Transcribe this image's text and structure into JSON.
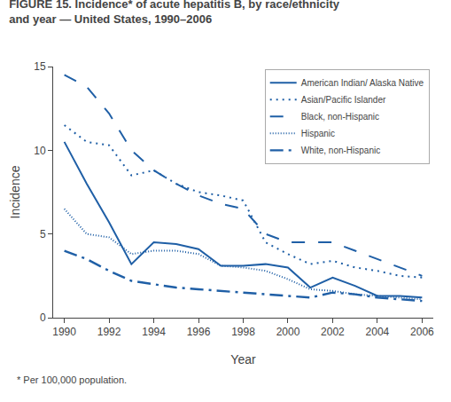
{
  "chart_data": {
    "type": "line",
    "title": "FIGURE 15. Incidence* of acute hepatitis B, by race/ethnicity\nand year — United States, 1990–2006",
    "annotations": [
      "* Per 100,000 population."
    ],
    "xlabel": "Year",
    "ylabel": "Incidence",
    "color": "#1F5FA6",
    "xlim": [
      1989.5,
      2006.5
    ],
    "xticks": [
      1990,
      1992,
      1994,
      1996,
      1998,
      2000,
      2002,
      2004,
      2006
    ],
    "ylim": [
      0,
      15
    ],
    "yticks": [
      0,
      5,
      10,
      15
    ],
    "grid": false,
    "legend": "upper right",
    "x": [
      1990,
      1991,
      1992,
      1993,
      1994,
      1995,
      1996,
      1997,
      1998,
      1999,
      2000,
      2001,
      2002,
      2003,
      2004,
      2005,
      2006
    ],
    "series": [
      {
        "name": "American Indian/ Alaska Native",
        "line_style": "solid",
        "values": [
          10.5,
          8.0,
          5.7,
          3.2,
          4.5,
          4.4,
          4.1,
          3.1,
          3.1,
          3.2,
          3.0,
          1.8,
          2.4,
          1.9,
          1.3,
          1.3,
          1.2
        ]
      },
      {
        "name": "Asian/Pacific Islander",
        "line_style": "dot",
        "values": [
          11.5,
          10.5,
          10.3,
          8.5,
          8.8,
          8.0,
          7.5,
          7.3,
          7.0,
          4.5,
          3.8,
          3.2,
          3.4,
          3.0,
          2.8,
          2.5,
          2.4
        ]
      },
      {
        "name": "Black, non-Hispanic",
        "line_style": "longdash",
        "values": [
          14.5,
          13.8,
          12.2,
          10.0,
          8.8,
          8.0,
          7.3,
          6.8,
          6.5,
          5.0,
          4.5,
          4.5,
          4.5,
          4.0,
          3.5,
          3.0,
          2.5
        ]
      },
      {
        "name": "Hispanic",
        "line_style": "densedot",
        "values": [
          6.5,
          5.0,
          4.8,
          3.8,
          4.0,
          4.0,
          3.8,
          3.1,
          3.0,
          2.8,
          2.3,
          1.7,
          1.6,
          1.4,
          1.3,
          1.2,
          1.1
        ]
      },
      {
        "name": "White, non-Hispanic",
        "line_style": "longdashdot",
        "values": [
          4.0,
          3.5,
          2.8,
          2.2,
          2.0,
          1.8,
          1.7,
          1.6,
          1.5,
          1.4,
          1.3,
          1.2,
          1.5,
          1.4,
          1.2,
          1.1,
          1.0
        ]
      }
    ]
  }
}
